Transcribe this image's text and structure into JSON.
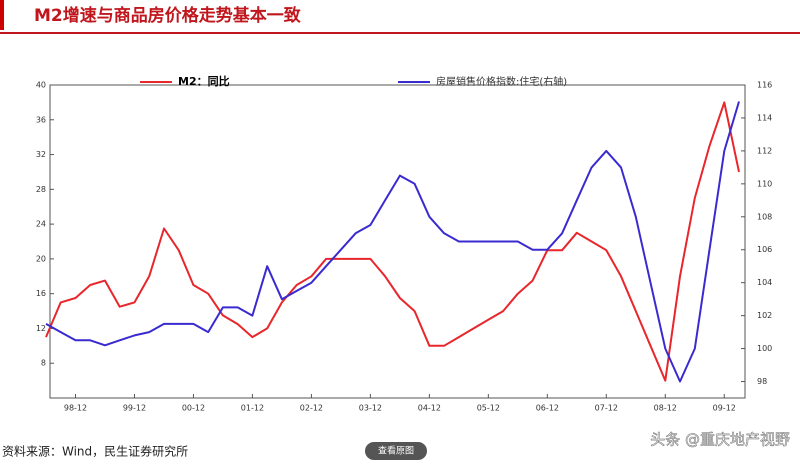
{
  "chart_data": {
    "type": "line",
    "title": "M2增速与商品房价格走势基本一致",
    "source": "资料来源：Wind，民生证券研究所",
    "button": "查看原图",
    "watermark": "头条 @重庆地产视野",
    "categories": [
      null,
      null,
      "98-12",
      null,
      null,
      null,
      "99-12",
      null,
      null,
      null,
      "00-12",
      null,
      null,
      null,
      "01-12",
      null,
      null,
      null,
      "02-12",
      null,
      null,
      null,
      "03-12",
      null,
      null,
      null,
      "04-12",
      null,
      null,
      null,
      "05-12",
      null,
      null,
      null,
      "06-12",
      null,
      null,
      null,
      "07-12",
      null,
      null,
      null,
      "08-12",
      null,
      null,
      null,
      "09-12",
      null
    ],
    "series": [
      {
        "name": "M2：同比",
        "color": "#e8262b",
        "values": [
          11,
          15,
          15.5,
          17,
          17.5,
          14.5,
          15,
          18,
          23.5,
          21,
          17,
          16,
          13.5,
          12.5,
          11,
          12,
          15,
          17,
          18,
          20,
          20,
          20,
          20,
          18,
          15.5,
          14,
          10,
          10,
          11,
          12,
          13,
          14,
          16,
          17.5,
          21,
          21,
          23,
          22,
          21,
          18,
          14,
          10,
          6,
          18,
          27,
          33,
          38,
          30
        ]
      },
      {
        "name": "房屋销售价格指数:住宅(右轴)",
        "color": "#3a2bd0",
        "axis": "y2",
        "values": [
          101.5,
          101,
          100.5,
          100.5,
          100.2,
          100.5,
          100.8,
          101,
          101.5,
          101.5,
          101.5,
          101,
          102.5,
          102.5,
          102,
          105,
          103,
          103.5,
          104,
          105,
          106,
          107,
          107.5,
          109,
          110.5,
          110,
          108,
          107,
          106.5,
          106.5,
          106.5,
          106.5,
          106.5,
          106,
          106,
          107,
          109,
          111,
          112,
          111,
          108,
          104,
          100,
          98,
          100,
          106,
          112,
          115
        ]
      }
    ],
    "ylim": [
      4,
      40
    ],
    "yticks": [
      8,
      12,
      16,
      20,
      24,
      28,
      32,
      36,
      40
    ],
    "y2lim": [
      97,
      116
    ],
    "y2ticks": [
      98,
      100,
      102,
      104,
      106,
      108,
      110,
      112,
      114,
      116
    ]
  }
}
